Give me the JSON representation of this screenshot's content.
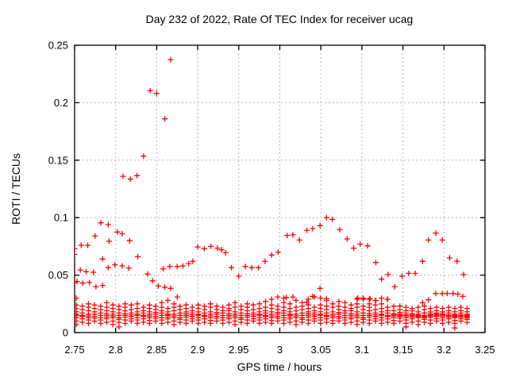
{
  "chart_data": {
    "type": "scatter",
    "title": "Day 232 of 2022, Rate Of TEC Index for receiver ucag",
    "xlabel": "GPS time / hours",
    "ylabel": "ROTI / TECUs",
    "xlim": [
      2.75,
      3.25
    ],
    "ylim": [
      0,
      0.25
    ],
    "xtick_values": [
      2.75,
      2.8,
      2.85,
      2.9,
      2.95,
      3.0,
      3.05,
      3.1,
      3.15,
      3.2,
      3.25
    ],
    "xtick_labels": [
      "2.75",
      "2.8",
      "2.85",
      "2.9",
      "2.95",
      "3",
      "3.05",
      "3.1",
      "3.15",
      "3.2",
      "3.25"
    ],
    "ytick_values": [
      0,
      0.05,
      0.1,
      0.15,
      0.2,
      0.25
    ],
    "ytick_labels": [
      "0",
      "0.05",
      "0.1",
      "0.15",
      "0.2",
      "0.25"
    ],
    "grid": "dashed",
    "legend": "none",
    "marker": "plus",
    "marker_size_px": 7,
    "colors": {
      "marker": "#ff0000",
      "grid": "#b5b5b5",
      "axis": "#000000",
      "text": "#000000",
      "background": "#ffffff"
    },
    "series": [
      {
        "name": "ROTI",
        "points": [
          [
            2.75,
            0.073
          ],
          [
            2.75,
            0.068
          ],
          [
            2.758,
            0.076
          ],
          [
            2.766,
            0.076
          ],
          [
            2.775,
            0.084
          ],
          [
            2.782,
            0.0955
          ],
          [
            2.791,
            0.094
          ],
          [
            2.792,
            0.0795
          ],
          [
            2.802,
            0.0875
          ],
          [
            2.808,
            0.086
          ],
          [
            2.784,
            0.064
          ],
          [
            2.817,
            0.08
          ],
          [
            2.827,
            0.066
          ],
          [
            2.757,
            0.0545
          ],
          [
            2.764,
            0.053
          ],
          [
            2.773,
            0.0525
          ],
          [
            2.791,
            0.0565
          ],
          [
            2.799,
            0.059
          ],
          [
            2.808,
            0.058
          ],
          [
            2.816,
            0.056
          ],
          [
            2.75,
            0.0435
          ],
          [
            2.753,
            0.0445
          ],
          [
            2.76,
            0.043
          ],
          [
            2.768,
            0.0435
          ],
          [
            2.776,
            0.04
          ],
          [
            2.784,
            0.041
          ],
          [
            2.809,
            0.136
          ],
          [
            2.818,
            0.1335
          ],
          [
            2.826,
            0.1365
          ],
          [
            2.834,
            0.1535
          ],
          [
            2.842,
            0.2105
          ],
          [
            2.85,
            0.208
          ],
          [
            2.86,
            0.186
          ],
          [
            2.867,
            0.2375
          ],
          [
            2.839,
            0.051
          ],
          [
            2.845,
            0.045
          ],
          [
            2.852,
            0.0405
          ],
          [
            2.86,
            0.0395
          ],
          [
            2.867,
            0.0385
          ],
          [
            2.858,
            0.0555
          ],
          [
            2.866,
            0.0575
          ],
          [
            2.875,
            0.0575
          ],
          [
            2.882,
            0.058
          ],
          [
            2.889,
            0.06
          ],
          [
            2.894,
            0.062
          ],
          [
            2.9,
            0.0745
          ],
          [
            2.908,
            0.073
          ],
          [
            2.916,
            0.075
          ],
          [
            2.924,
            0.0735
          ],
          [
            2.929,
            0.072
          ],
          [
            2.934,
            0.0695
          ],
          [
            2.941,
            0.0565
          ],
          [
            2.95,
            0.049
          ],
          [
            2.958,
            0.0575
          ],
          [
            2.966,
            0.0565
          ],
          [
            2.974,
            0.0565
          ],
          [
            2.982,
            0.062
          ],
          [
            2.99,
            0.0675
          ],
          [
            2.998,
            0.07
          ],
          [
            3.009,
            0.0845
          ],
          [
            3.016,
            0.085
          ],
          [
            3.024,
            0.0805
          ],
          [
            3.033,
            0.089
          ],
          [
            3.04,
            0.0905
          ],
          [
            3.049,
            0.093
          ],
          [
            3.057,
            0.1
          ],
          [
            3.064,
            0.0985
          ],
          [
            3.073,
            0.0895
          ],
          [
            3.082,
            0.0815
          ],
          [
            3.09,
            0.0735
          ],
          [
            3.098,
            0.077
          ],
          [
            3.107,
            0.0755
          ],
          [
            3.117,
            0.061
          ],
          [
            3.124,
            0.0465
          ],
          [
            3.132,
            0.0505
          ],
          [
            3.14,
            0.04
          ],
          [
            3.149,
            0.049
          ],
          [
            3.157,
            0.0515
          ],
          [
            3.165,
            0.0515
          ],
          [
            3.174,
            0.062
          ],
          [
            3.181,
            0.0805
          ],
          [
            3.19,
            0.0865
          ],
          [
            3.198,
            0.0805
          ],
          [
            3.207,
            0.065
          ],
          [
            3.216,
            0.062
          ],
          [
            3.224,
            0.0505
          ],
          [
            3.174,
            0.026
          ],
          [
            3.181,
            0.0285
          ],
          [
            3.19,
            0.034
          ],
          [
            3.198,
            0.034
          ],
          [
            3.204,
            0.034
          ],
          [
            3.211,
            0.034
          ],
          [
            3.217,
            0.0335
          ],
          [
            3.223,
            0.0315
          ],
          [
            3.008,
            0.0305
          ],
          [
            3.016,
            0.031
          ],
          [
            3.033,
            0.0265
          ],
          [
            3.04,
            0.0315
          ],
          [
            3.049,
            0.0385
          ],
          [
            3.057,
            0.0295
          ],
          [
            3.095,
            0.03
          ],
          [
            3.102,
            0.029
          ],
          [
            3.11,
            0.0295
          ],
          [
            3.117,
            0.028
          ],
          [
            3.131,
            0.029
          ],
          [
            2.875,
            0.031
          ]
        ]
      }
    ],
    "dense_band": {
      "t0": 2.752,
      "dt": 0.00744,
      "columns": [
        [
          0.007,
          0.01,
          0.013,
          0.015,
          0.016,
          0.018,
          0.021,
          0.024,
          0.03
        ],
        [
          0.009,
          0.012,
          0.014,
          0.015,
          0.017,
          0.02,
          0.023
        ],
        [
          0.008,
          0.011,
          0.013,
          0.0145,
          0.016,
          0.019,
          0.022,
          0.025
        ],
        [
          0.01,
          0.0125,
          0.014,
          0.016,
          0.018,
          0.021,
          0.024
        ],
        [
          0.008,
          0.011,
          0.013,
          0.015,
          0.017,
          0.02,
          0.023
        ],
        [
          0.009,
          0.012,
          0.0135,
          0.015,
          0.0165,
          0.019,
          0.022,
          0.026
        ],
        [
          0.007,
          0.01,
          0.013,
          0.0145,
          0.016,
          0.018,
          0.021,
          0.024
        ],
        [
          0.005,
          0.009,
          0.0115,
          0.013,
          0.015,
          0.017,
          0.02,
          0.023
        ],
        [
          0.008,
          0.011,
          0.0135,
          0.015,
          0.0165,
          0.019,
          0.022,
          0.025
        ],
        [
          0.01,
          0.012,
          0.014,
          0.0155,
          0.017,
          0.02,
          0.024
        ],
        [
          0.008,
          0.011,
          0.013,
          0.015,
          0.016,
          0.018,
          0.021,
          0.025
        ],
        [
          0.009,
          0.012,
          0.014,
          0.015,
          0.017,
          0.019,
          0.022
        ],
        [
          0.008,
          0.0105,
          0.013,
          0.0145,
          0.016,
          0.018,
          0.021,
          0.024
        ],
        [
          0.01,
          0.0125,
          0.014,
          0.016,
          0.0175,
          0.02,
          0.023
        ],
        [
          0.008,
          0.011,
          0.013,
          0.015,
          0.017,
          0.019,
          0.022,
          0.026
        ],
        [
          0.009,
          0.012,
          0.0135,
          0.015,
          0.016,
          0.018,
          0.021,
          0.028
        ],
        [
          0.007,
          0.01,
          0.013,
          0.0145,
          0.016,
          0.019,
          0.022,
          0.025
        ],
        [
          0.009,
          0.0115,
          0.013,
          0.015,
          0.017,
          0.02,
          0.023
        ],
        [
          0.008,
          0.011,
          0.0135,
          0.015,
          0.0165,
          0.018,
          0.021,
          0.024
        ],
        [
          0.01,
          0.012,
          0.014,
          0.0155,
          0.017,
          0.019,
          0.022
        ],
        [
          0.008,
          0.011,
          0.013,
          0.015,
          0.016,
          0.018,
          0.021,
          0.024
        ],
        [
          0.009,
          0.012,
          0.014,
          0.015,
          0.017,
          0.02,
          0.023
        ],
        [
          0.008,
          0.0105,
          0.013,
          0.0145,
          0.016,
          0.018,
          0.022,
          0.025
        ],
        [
          0.01,
          0.0125,
          0.014,
          0.016,
          0.0175,
          0.02,
          0.023
        ],
        [
          0.008,
          0.011,
          0.013,
          0.015,
          0.017,
          0.019,
          0.022
        ],
        [
          0.009,
          0.012,
          0.0135,
          0.015,
          0.0165,
          0.019,
          0.021,
          0.024
        ],
        [
          0.007,
          0.01,
          0.013,
          0.0145,
          0.016,
          0.018,
          0.022,
          0.026
        ],
        [
          0.009,
          0.0115,
          0.013,
          0.015,
          0.017,
          0.02,
          0.023
        ],
        [
          0.008,
          0.011,
          0.0135,
          0.015,
          0.0165,
          0.019,
          0.022,
          0.025
        ],
        [
          0.01,
          0.012,
          0.014,
          0.0155,
          0.017,
          0.02,
          0.024
        ],
        [
          0.008,
          0.011,
          0.013,
          0.015,
          0.016,
          0.018,
          0.021,
          0.025
        ],
        [
          0.009,
          0.012,
          0.014,
          0.015,
          0.017,
          0.019,
          0.022,
          0.027
        ],
        [
          0.008,
          0.0105,
          0.013,
          0.0145,
          0.016,
          0.018,
          0.021,
          0.024,
          0.029
        ],
        [
          0.01,
          0.0125,
          0.014,
          0.016,
          0.0175,
          0.02,
          0.023,
          0.031
        ],
        [
          0.008,
          0.011,
          0.013,
          0.015,
          0.017,
          0.019,
          0.022,
          0.026,
          0.03
        ],
        [
          0.009,
          0.012,
          0.0135,
          0.015,
          0.016,
          0.018,
          0.021,
          0.025
        ],
        [
          0.007,
          0.01,
          0.013,
          0.0145,
          0.016,
          0.019,
          0.022,
          0.028
        ],
        [
          0.009,
          0.0115,
          0.013,
          0.015,
          0.017,
          0.02,
          0.023,
          0.026
        ],
        [
          0.008,
          0.011,
          0.0135,
          0.015,
          0.0165,
          0.018,
          0.021,
          0.024,
          0.029
        ],
        [
          0.01,
          0.012,
          0.014,
          0.0155,
          0.017,
          0.019,
          0.022,
          0.031
        ],
        [
          0.008,
          0.011,
          0.013,
          0.015,
          0.016,
          0.018,
          0.021,
          0.024,
          0.03
        ],
        [
          0.009,
          0.012,
          0.014,
          0.015,
          0.017,
          0.02,
          0.023,
          0.028
        ],
        [
          0.008,
          0.0105,
          0.013,
          0.0145,
          0.016,
          0.018,
          0.022,
          0.025
        ],
        [
          0.01,
          0.0125,
          0.014,
          0.016,
          0.0175,
          0.02,
          0.023,
          0.027
        ],
        [
          0.008,
          0.011,
          0.013,
          0.015,
          0.017,
          0.019,
          0.022,
          0.026
        ],
        [
          0.009,
          0.012,
          0.0135,
          0.015,
          0.0165,
          0.019,
          0.021,
          0.024
        ],
        [
          0.007,
          0.01,
          0.013,
          0.0145,
          0.016,
          0.018,
          0.022,
          0.025,
          0.029
        ],
        [
          0.009,
          0.0115,
          0.013,
          0.015,
          0.017,
          0.02,
          0.023,
          0.03
        ],
        [
          0.008,
          0.011,
          0.0135,
          0.015,
          0.0165,
          0.019,
          0.022,
          0.025,
          0.029
        ],
        [
          0.01,
          0.012,
          0.014,
          0.0155,
          0.017,
          0.02,
          0.024,
          0.028
        ],
        [
          0.008,
          0.011,
          0.013,
          0.015,
          0.016,
          0.018,
          0.021,
          0.025,
          0.03
        ],
        [
          0.009,
          0.012,
          0.014,
          0.015,
          0.017,
          0.019,
          0.022,
          0.029
        ],
        [
          0.008,
          0.0105,
          0.013,
          0.0145,
          0.0155,
          0.0165,
          0.019,
          0.023
        ],
        [
          0.01,
          0.0125,
          0.014,
          0.015,
          0.016,
          0.0175,
          0.02,
          0.023
        ],
        [
          0.005,
          0.008,
          0.011,
          0.013,
          0.0145,
          0.0155,
          0.017,
          0.019,
          0.022
        ],
        [
          0.009,
          0.012,
          0.0135,
          0.0145,
          0.0155,
          0.0165,
          0.019,
          0.021
        ],
        [
          0.007,
          0.01,
          0.013,
          0.014,
          0.015,
          0.016,
          0.018,
          0.022
        ],
        [
          0.009,
          0.0115,
          0.013,
          0.014,
          0.015,
          0.017,
          0.02,
          0.023
        ],
        [
          0.008,
          0.011,
          0.0135,
          0.0145,
          0.0155,
          0.0165,
          0.018,
          0.021
        ],
        [
          0.01,
          0.012,
          0.014,
          0.015,
          0.016,
          0.017,
          0.019,
          0.022
        ],
        [
          0.008,
          0.011,
          0.013,
          0.0145,
          0.0155,
          0.0165,
          0.018,
          0.021
        ],
        [
          0.009,
          0.012,
          0.0135,
          0.0145,
          0.0155,
          0.017,
          0.019,
          0.022
        ],
        [
          0.004,
          0.008,
          0.0105,
          0.013,
          0.014,
          0.015,
          0.016,
          0.018,
          0.021
        ],
        [
          0.01,
          0.012,
          0.0135,
          0.0145,
          0.0155,
          0.017,
          0.019,
          0.022
        ],
        [
          0.009,
          0.0115,
          0.013,
          0.014,
          0.015,
          0.016,
          0.018,
          0.021
        ]
      ]
    }
  }
}
